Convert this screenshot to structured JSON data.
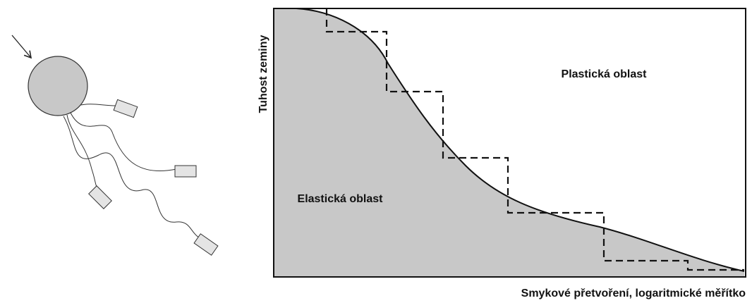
{
  "chart": {
    "y_axis_label": "Tuhost zeminy",
    "x_axis_label": "Smykové přetvoření, logaritmické měřítko",
    "regions": [
      "Plastická oblast",
      "Elastická oblast"
    ]
  }
}
